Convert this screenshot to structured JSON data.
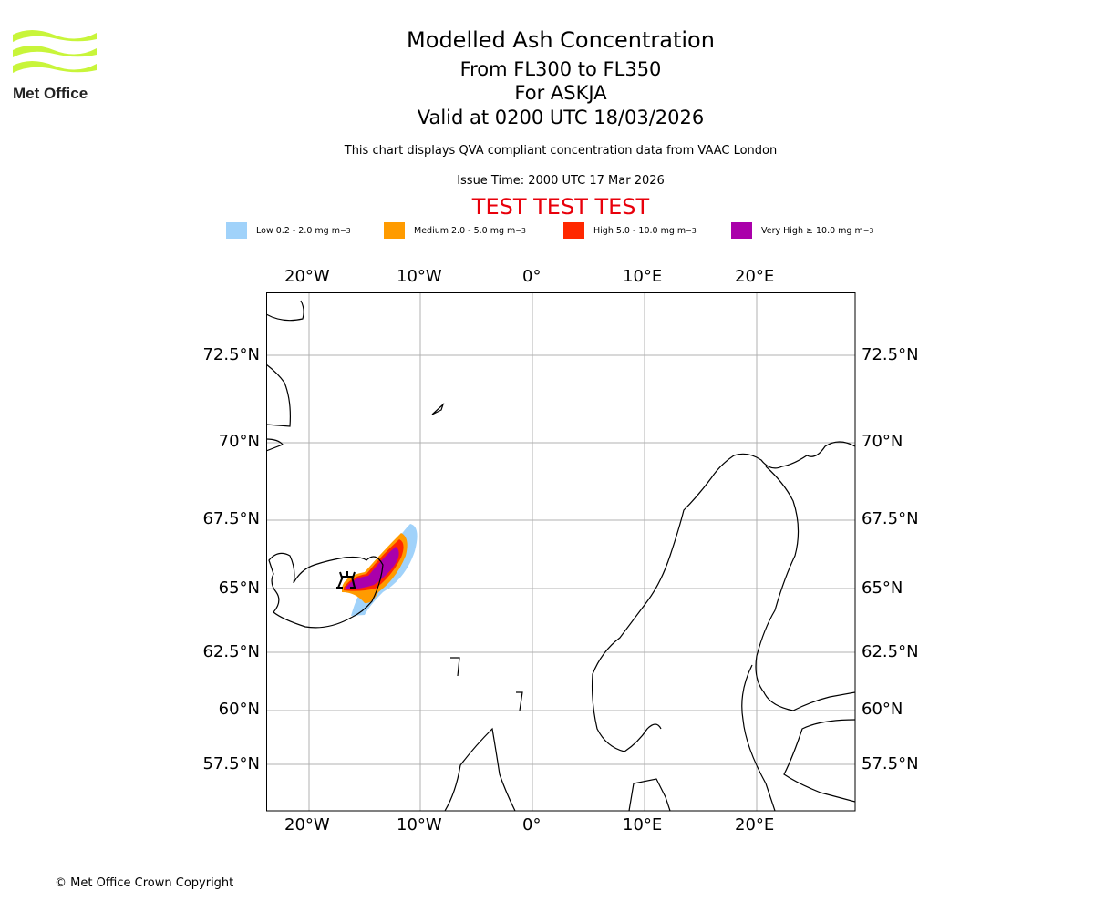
{
  "logo": {
    "text": "Met Office",
    "color": "#c8f53a"
  },
  "header": {
    "title": "Modelled Ash Concentration",
    "levels": "From FL300 to FL350",
    "volcano": "For ASKJA",
    "valid": "Valid at 0200 UTC 18/03/2026",
    "note": "This chart displays QVA compliant concentration data from VAAC London",
    "issue": "Issue Time: 2000 UTC 17 Mar 2026",
    "test": "TEST TEST TEST"
  },
  "legend": [
    {
      "label": "Low 0.2 - 2.0 mg m",
      "sup": "−3",
      "color": "#a0d2fa"
    },
    {
      "label": "Medium 2.0 - 5.0 mg m",
      "sup": "−3",
      "color": "#ff9b00"
    },
    {
      "label": "High 5.0 - 10.0 mg m",
      "sup": "−3",
      "color": "#ff2800"
    },
    {
      "label": "Very High ≥ 10.0 mg m",
      "sup": "−3",
      "color": "#aa00aa"
    }
  ],
  "map": {
    "lon_ticks": [
      "20°W",
      "10°W",
      "0°",
      "10°E",
      "20°E"
    ],
    "lat_ticks": [
      "72.5°N",
      "70°N",
      "67.5°N",
      "65°N",
      "62.5°N",
      "60°N",
      "57.5°N"
    ],
    "volcano_icon": "volcano-icon"
  },
  "footer": {
    "copyright": "© Met Office Crown Copyright"
  }
}
